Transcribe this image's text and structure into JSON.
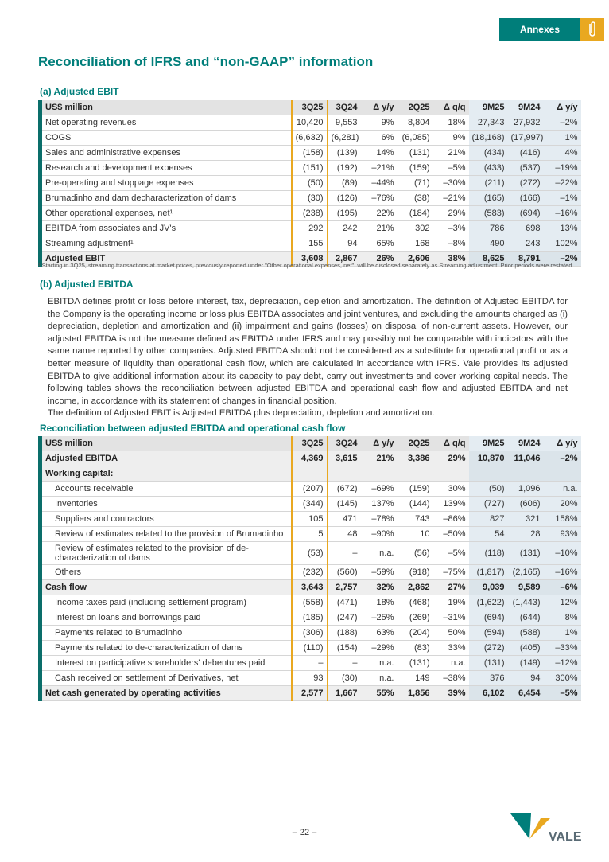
{
  "header": {
    "tab": "Annexes"
  },
  "title": "Reconciliation of IFRS and “non-GAAP” information",
  "section_a": {
    "heading": "(a) Adjusted EBIT",
    "table": {
      "columns": [
        "US$ million",
        "3Q25",
        "3Q24",
        "Δ y/y",
        "2Q25",
        "Δ q/q",
        "9M25",
        "9M24",
        "Δ y/y"
      ],
      "rows": [
        [
          "Net operating revenues",
          "10,420",
          "9,553",
          "9%",
          "8,804",
          "18%",
          "27,343",
          "27,932",
          "–2%"
        ],
        [
          "COGS",
          "(6,632)",
          "(6,281)",
          "6%",
          "(6,085)",
          "9%",
          "(18,168)",
          "(17,997)",
          "1%"
        ],
        [
          "Sales and administrative expenses",
          "(158)",
          "(139)",
          "14%",
          "(131)",
          "21%",
          "(434)",
          "(416)",
          "4%"
        ],
        [
          "Research and development expenses",
          "(151)",
          "(192)",
          "–21%",
          "(159)",
          "–5%",
          "(433)",
          "(537)",
          "–19%"
        ],
        [
          "Pre-operating and stoppage expenses",
          "(50)",
          "(89)",
          "–44%",
          "(71)",
          "–30%",
          "(211)",
          "(272)",
          "–22%"
        ],
        [
          "Brumadinho and dam decharacterization of dams",
          "(30)",
          "(126)",
          "–76%",
          "(38)",
          "–21%",
          "(165)",
          "(166)",
          "–1%"
        ],
        [
          "Other operational expenses, net¹",
          "(238)",
          "(195)",
          "22%",
          "(184)",
          "29%",
          "(583)",
          "(694)",
          "–16%"
        ],
        [
          "EBITDA from associates and JV's",
          "292",
          "242",
          "21%",
          "302",
          "–3%",
          "786",
          "698",
          "13%"
        ],
        [
          "Streaming adjustment¹",
          "155",
          "94",
          "65%",
          "168",
          "–8%",
          "490",
          "243",
          "102%"
        ],
        [
          "Adjusted EBIT",
          "3,608",
          "2,867",
          "26%",
          "2,606",
          "38%",
          "8,625",
          "8,791",
          "–2%"
        ]
      ]
    },
    "footnote": "¹ Starting in 3Q25, streaming transactions at market prices, previously reported under \"Other operational expenses, net\", will be disclosed separately as Streaming adjustment. Prior periods were restated."
  },
  "section_b": {
    "heading": "(b) Adjusted EBITDA",
    "paragraphs": [
      "EBITDA defines profit or loss before interest, tax, depreciation, depletion and amortization. The definition of Adjusted EBITDA for the Company is the operating income or loss plus EBITDA associates and joint ventures, and excluding the amounts charged as (i) depreciation, depletion and amortization and (ii) impairment and gains (losses) on disposal of non-current assets. However, our adjusted EBITDA is not the measure defined as EBITDA under IFRS and may possibly not be comparable with indicators with the same name reported by other companies. Adjusted EBITDA should not be considered as a substitute for operational profit or as a better measure of liquidity than operational cash flow, which are calculated in accordance with IFRS. Vale provides its adjusted EBITDA to give additional information about its capacity to pay debt, carry out investments and cover working capital needs. The following tables shows the reconciliation between adjusted EBITDA and operational cash flow and adjusted EBITDA and net income, in accordance with its statement of changes in financial position.",
      "The definition of Adjusted EBIT is Adjusted EBITDA plus depreciation, depletion and amortization."
    ],
    "subheading": "Reconciliation between adjusted EBITDA and operational cash flow",
    "table": {
      "columns": [
        "US$ million",
        "3Q25",
        "3Q24",
        "Δ y/y",
        "2Q25",
        "Δ q/q",
        "9M25",
        "9M24",
        "Δ y/y"
      ],
      "rows": [
        [
          "Adjusted EBITDA",
          "4,369",
          "3,615",
          "21%",
          "3,386",
          "29%",
          "10,870",
          "11,046",
          "–2%"
        ],
        [
          "Working capital:"
        ],
        [
          "Accounts receivable",
          "(207)",
          "(672)",
          "–69%",
          "(159)",
          "30%",
          "(50)",
          "1,096",
          "n.a."
        ],
        [
          "Inventories",
          "(344)",
          "(145)",
          "137%",
          "(144)",
          "139%",
          "(727)",
          "(606)",
          "20%"
        ],
        [
          "Suppliers and contractors",
          "105",
          "471",
          "–78%",
          "743",
          "–86%",
          "827",
          "321",
          "158%"
        ],
        [
          "Review of estimates related to the provision of Brumadinho",
          "5",
          "48",
          "–90%",
          "10",
          "–50%",
          "54",
          "28",
          "93%"
        ],
        [
          "Review of estimates related to the provision of de-characterization of dams",
          "(53)",
          "–",
          "n.a.",
          "(56)",
          "–5%",
          "(118)",
          "(131)",
          "–10%"
        ],
        [
          "Others",
          "(232)",
          "(560)",
          "–59%",
          "(918)",
          "–75%",
          "(1,817)",
          "(2,165)",
          "–16%"
        ],
        [
          "Cash flow",
          "3,643",
          "2,757",
          "32%",
          "2,862",
          "27%",
          "9,039",
          "9,589",
          "–6%"
        ],
        [
          "Income taxes paid (including settlement program)",
          "(558)",
          "(471)",
          "18%",
          "(468)",
          "19%",
          "(1,622)",
          "(1,443)",
          "12%"
        ],
        [
          "Interest on loans and borrowings paid",
          "(185)",
          "(247)",
          "–25%",
          "(269)",
          "–31%",
          "(694)",
          "(644)",
          "8%"
        ],
        [
          "Payments related to Brumadinho",
          "(306)",
          "(188)",
          "63%",
          "(204)",
          "50%",
          "(594)",
          "(588)",
          "1%"
        ],
        [
          "Payments related to de-characterization of dams",
          "(110)",
          "(154)",
          "–29%",
          "(83)",
          "33%",
          "(272)",
          "(405)",
          "–33%"
        ],
        [
          "Interest on participative shareholders' debentures paid",
          "–",
          "–",
          "n.a.",
          "(131)",
          "n.a.",
          "(131)",
          "(149)",
          "–12%"
        ],
        [
          "Cash received on settlement of Derivatives, net",
          "93",
          "(30)",
          "n.a.",
          "149",
          "–38%",
          "376",
          "94",
          "300%"
        ],
        [
          "Net cash generated by operating activities",
          "2,577",
          "1,667",
          "55%",
          "1,856",
          "39%",
          "6,102",
          "6,454",
          "–5%"
        ]
      ]
    }
  },
  "footer": {
    "page": "– 22 –",
    "logo": "VALE"
  }
}
